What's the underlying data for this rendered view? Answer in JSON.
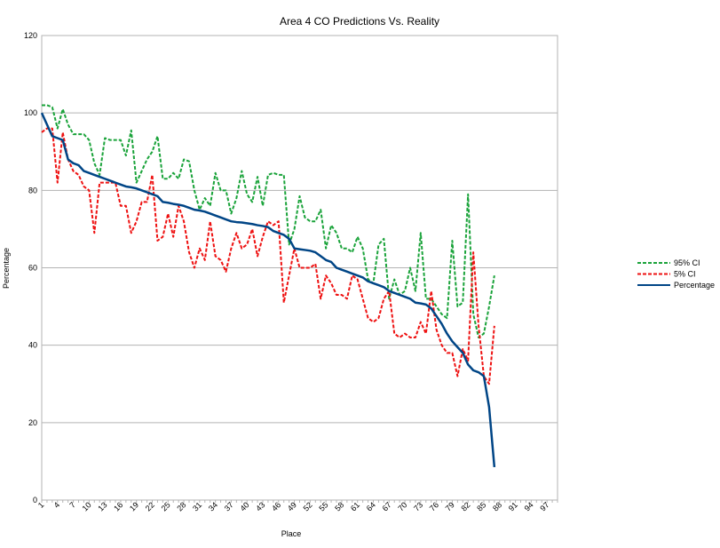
{
  "chart_data": {
    "type": "line",
    "title": "Area 4 CO Predictions Vs. Reality",
    "x_label": "Place",
    "y_label": "Percentage",
    "categories": [
      1,
      null,
      null,
      4,
      null,
      null,
      7,
      null,
      null,
      10,
      null,
      null,
      13,
      null,
      null,
      16,
      null,
      null,
      19,
      null,
      null,
      22,
      null,
      null,
      25,
      null,
      null,
      28,
      null,
      null,
      31,
      null,
      null,
      34,
      null,
      null,
      37,
      null,
      null,
      40,
      null,
      null,
      43,
      null,
      null,
      46,
      null,
      null,
      49,
      null,
      null,
      52,
      null,
      null,
      55,
      null,
      null,
      58,
      null,
      null,
      61,
      null,
      null,
      64,
      null,
      null,
      67,
      null,
      null,
      70,
      null,
      null,
      73,
      null,
      null,
      76,
      null,
      null,
      79,
      null,
      null,
      82,
      null,
      null,
      85,
      null,
      null,
      88,
      null,
      null,
      91,
      null,
      null,
      94,
      null,
      null,
      97,
      null,
      null
    ],
    "series": [
      {
        "name": "95% CI",
        "color": "#1aa33a",
        "dashed": true,
        "values": [
          102,
          102,
          101.5,
          96,
          101,
          97,
          94.5,
          94.5,
          94.5,
          93,
          87,
          84,
          93.5,
          93,
          93,
          93,
          89,
          95.5,
          82,
          85,
          88,
          90,
          94,
          83,
          83,
          84.5,
          83,
          88,
          87.5,
          80,
          75,
          78,
          76,
          84.5,
          80,
          80,
          74,
          78,
          85,
          79,
          77,
          83.5,
          76,
          84,
          84.5,
          84,
          84,
          66,
          70,
          78.5,
          73,
          72,
          72,
          75,
          65,
          71,
          69,
          65,
          65,
          64,
          68,
          65,
          57,
          56,
          66,
          67.5,
          52,
          57,
          53,
          54,
          60,
          54,
          69,
          52,
          52,
          50,
          48,
          47,
          67,
          50,
          51,
          79,
          48,
          42,
          43,
          50,
          58,
          null,
          null,
          null,
          null,
          null,
          null,
          null,
          null,
          null,
          null,
          null,
          null
        ]
      },
      {
        "name": "5% CI",
        "color": "#ee1111",
        "dashed": true,
        "values": [
          95,
          96,
          96,
          82,
          95,
          88,
          85,
          84,
          81,
          80,
          69,
          82,
          82,
          82,
          82,
          76,
          76,
          69,
          72,
          77,
          77,
          84,
          67,
          68,
          74,
          68,
          76,
          72,
          64,
          60,
          65,
          62,
          72,
          63,
          62,
          59,
          65,
          69,
          65,
          66,
          70,
          63,
          68,
          72,
          71,
          72,
          51,
          58,
          65,
          60,
          60,
          60,
          61,
          52,
          58,
          56,
          53,
          53,
          52,
          58,
          57,
          52,
          47,
          46,
          47,
          52,
          54,
          43,
          42,
          43,
          42,
          42,
          46,
          43,
          54,
          44,
          40,
          38,
          38,
          32,
          39,
          36,
          64,
          45,
          32,
          30,
          45,
          null,
          null,
          null,
          null,
          null,
          null,
          null,
          null,
          null,
          null,
          null,
          null
        ]
      },
      {
        "name": "Percentage",
        "color": "#004586",
        "dashed": false,
        "values": [
          100,
          97,
          94,
          93.5,
          93,
          88,
          87,
          86.5,
          85,
          84.5,
          84,
          83.5,
          83,
          82.5,
          82,
          81.5,
          81,
          80.8,
          80.5,
          80,
          79.5,
          79,
          78.5,
          77,
          76.8,
          76.5,
          76.3,
          76,
          75.5,
          75,
          74.8,
          74.5,
          74,
          73.5,
          73,
          72.5,
          72,
          71.8,
          71.7,
          71.5,
          71.3,
          71,
          70.8,
          70.5,
          69.5,
          69,
          68.5,
          67.5,
          65,
          64.8,
          64.6,
          64.4,
          64,
          63,
          62,
          61.5,
          60,
          59.5,
          59,
          58.5,
          58,
          57.5,
          56.5,
          56,
          55.5,
          55,
          54,
          53.5,
          53,
          52.5,
          52,
          51,
          50.8,
          50.5,
          49.5,
          47.5,
          45.5,
          43,
          41,
          39.5,
          38,
          35,
          33.5,
          33,
          32,
          24,
          8.5,
          null,
          null,
          null,
          null,
          null,
          null,
          null,
          null,
          null,
          null,
          null,
          null
        ]
      }
    ],
    "ylim": [
      0,
      120
    ],
    "yticks": [
      0,
      20,
      40,
      60,
      80,
      100,
      120
    ],
    "grid": true,
    "legend": "right"
  }
}
